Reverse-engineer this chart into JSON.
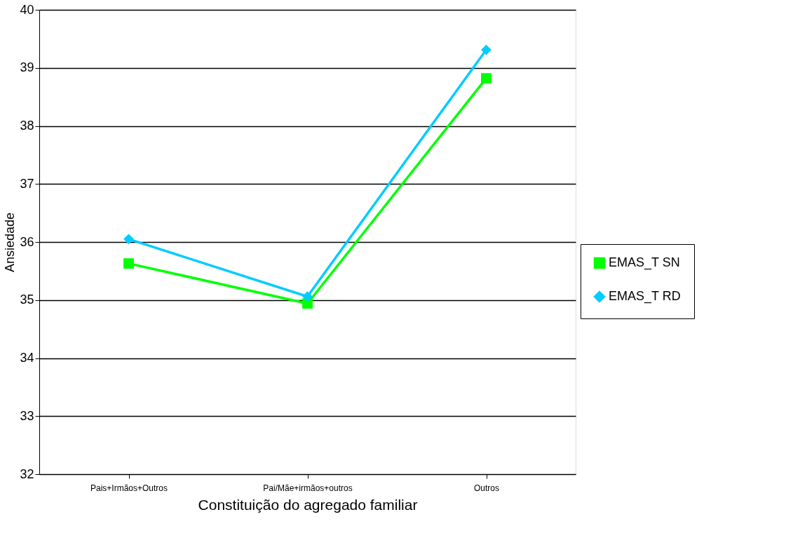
{
  "chart_data": {
    "type": "line",
    "xlabel": "Constituição do agregado familiar",
    "ylabel": "Ansiedade",
    "categories": [
      "Pais+Irmãos+Outros",
      "Pai/Mãe+irmãos+outros",
      "Outros"
    ],
    "series": [
      {
        "name": "EMAS_T SN",
        "color": "#00ff00",
        "marker": "square",
        "values": [
          35.63,
          34.94,
          38.82
        ]
      },
      {
        "name": "EMAS_T RD",
        "color": "#00ccff",
        "marker": "diamond",
        "values": [
          36.05,
          35.06,
          39.31
        ]
      }
    ],
    "ylim": [
      32,
      40
    ],
    "yticks": [
      32,
      33,
      34,
      35,
      36,
      37,
      38,
      39,
      40
    ],
    "grid": "y",
    "legend": "right",
    "line_style": "solid"
  }
}
